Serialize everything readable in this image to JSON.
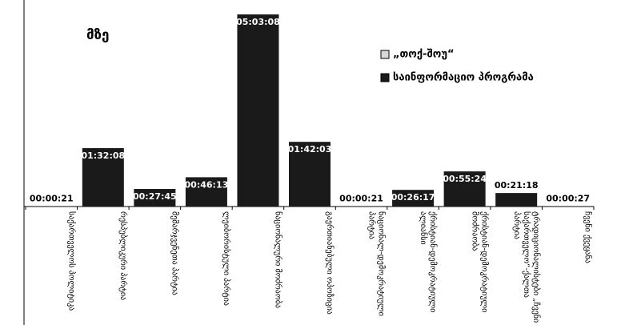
{
  "chart_data": {
    "type": "bar",
    "subtitle": "მზე",
    "categories": [
      "საქართველოს პოლიტიკა",
      "რესპუბლიკური პარტია",
      "მემარჯვენეთა პარტია",
      "ლეიბორისტული პარტია",
      "ნაციონალური მოძრაობა",
      "გაერთიანებული ოპოზიცია",
      "ნაციონალ-დემოკრატიული პარტია",
      "ქრისტიან-დემოკრატიული ალიანსი",
      "ქრისტიან-დემოკრატიული მოძრაობა",
      "ტრადიციონალისტები „ჩვენი საქართველო“-ქალთა პარტია",
      "ჩვენი ქვეყანა"
    ],
    "series": [
      {
        "name": "„თოქ-შოუ“",
        "color": "#d9d9d9",
        "values": [
          null,
          null,
          null,
          null,
          null,
          null,
          null,
          null,
          null,
          null,
          null
        ]
      },
      {
        "name": "საინფორმაციო პროგრამა",
        "color": "#1a1a1a",
        "values": [
          21,
          5528,
          1665,
          2773,
          18188,
          6123,
          21,
          1577,
          3324,
          1278,
          27
        ],
        "value_labels": [
          "00:00:21",
          "01:32:08",
          "00:27:45",
          "00:46:13",
          "05:03:08",
          "01:42:03",
          "00:00:21",
          "00:26:17",
          "00:55:24",
          "00:21:18",
          "00:00:27"
        ]
      }
    ]
  }
}
